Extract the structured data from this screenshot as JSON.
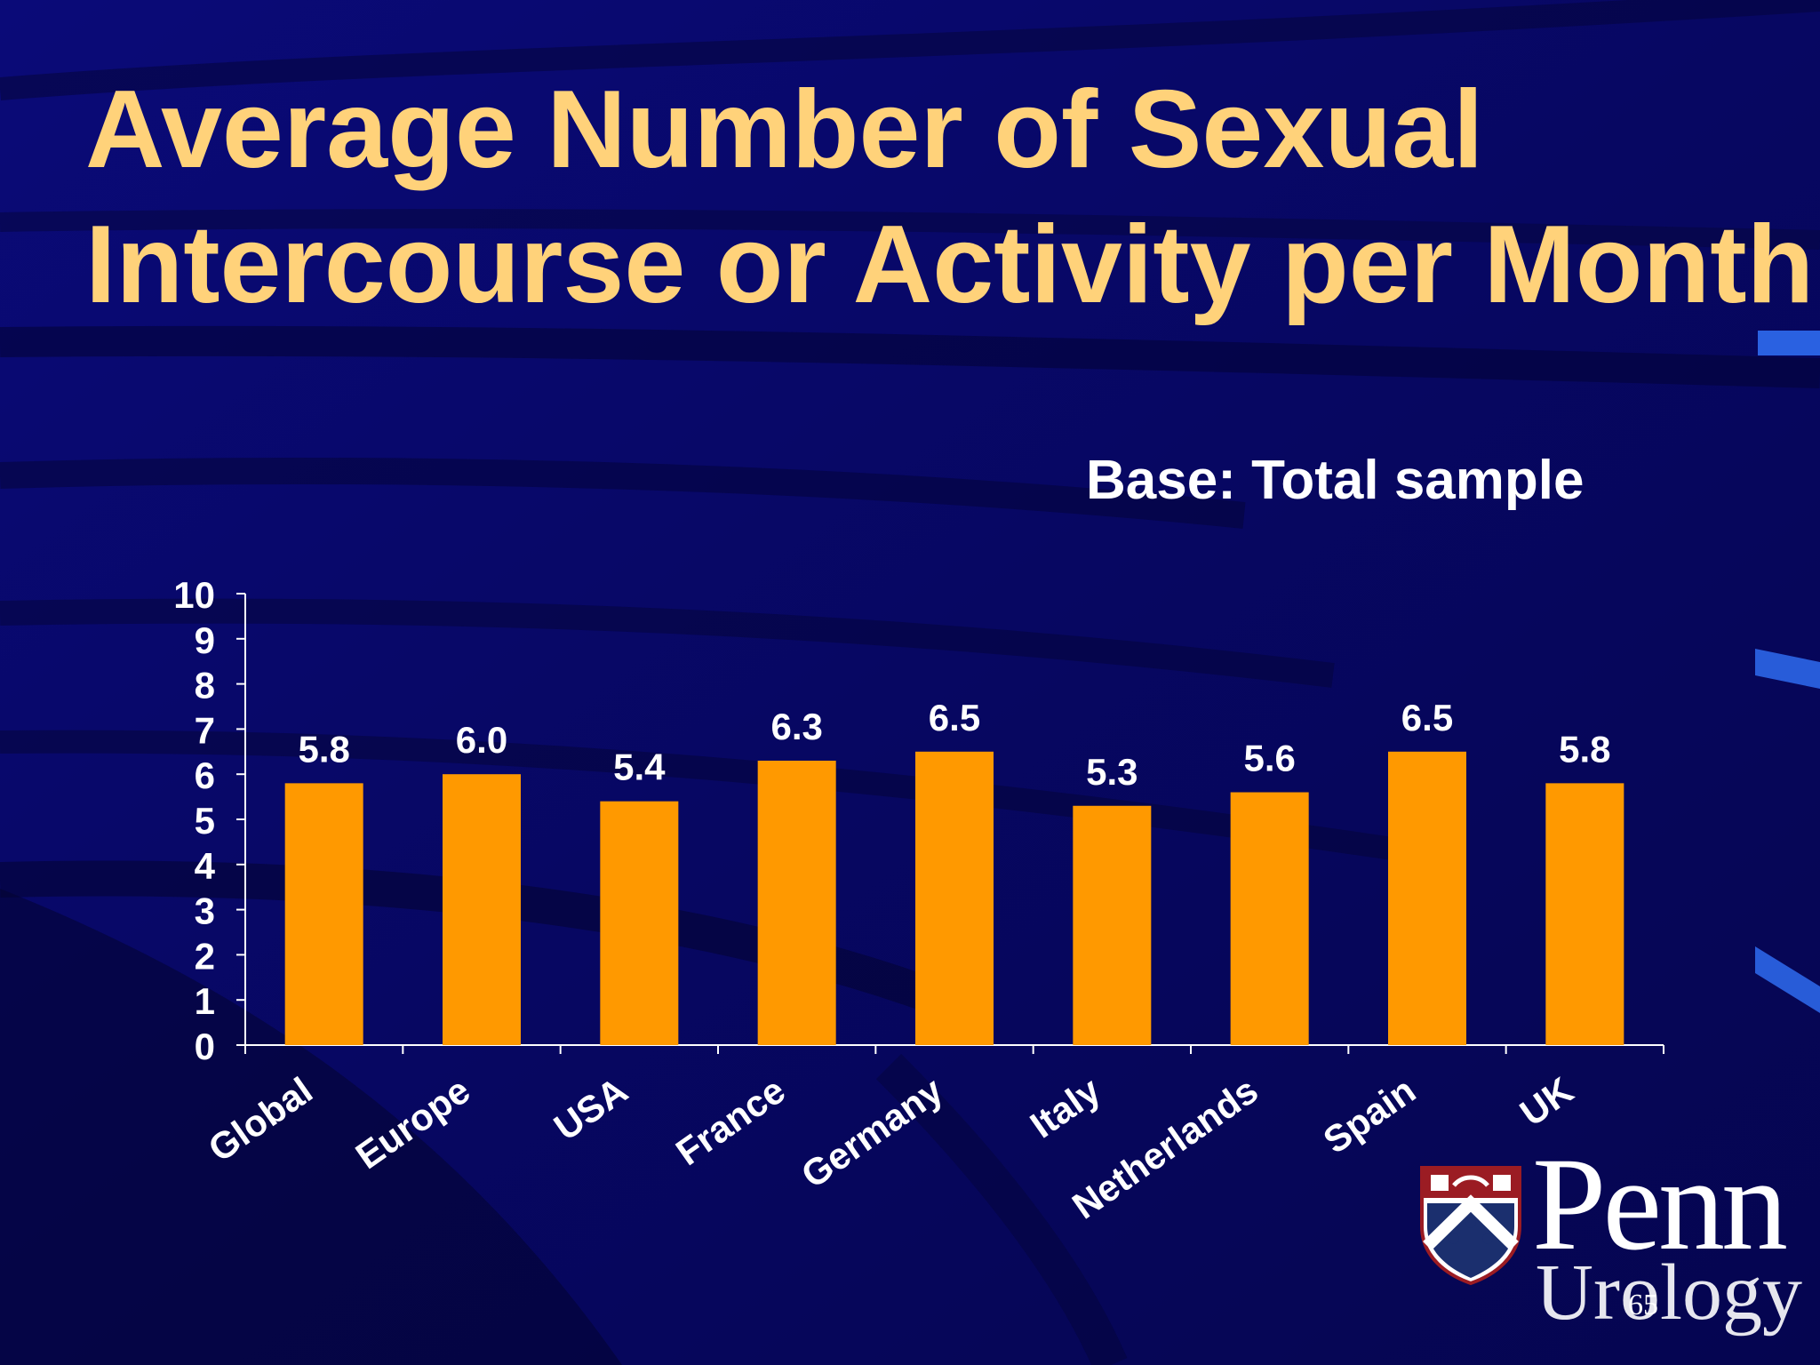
{
  "slide": {
    "title_line1": "Average Number of Sexual",
    "title_line2": "Intercourse or Activity per Month",
    "base_label": "Base: Total sample",
    "page_number": "65",
    "logo": {
      "name": "Penn",
      "sub": "Urology"
    },
    "colors": {
      "background": "#08086a",
      "title": "#ffd27a",
      "bar": "#ff9900",
      "text": "#ffffff"
    }
  },
  "chart_data": {
    "type": "bar",
    "categories": [
      "Global",
      "Europe",
      "USA",
      "France",
      "Germany",
      "Italy",
      "Netherlands",
      "Spain",
      "UK"
    ],
    "values": [
      5.8,
      6.0,
      5.4,
      6.3,
      6.5,
      5.3,
      5.6,
      6.5,
      5.8
    ],
    "data_labels": [
      "5.8",
      "6.0",
      "5.4",
      "6.3",
      "6.5",
      "5.3",
      "5.6",
      "6.5",
      "5.8"
    ],
    "ylim": [
      0,
      10
    ],
    "yticks": [
      0,
      1,
      2,
      3,
      4,
      5,
      6,
      7,
      8,
      9,
      10
    ],
    "grid": false,
    "legend": false
  }
}
